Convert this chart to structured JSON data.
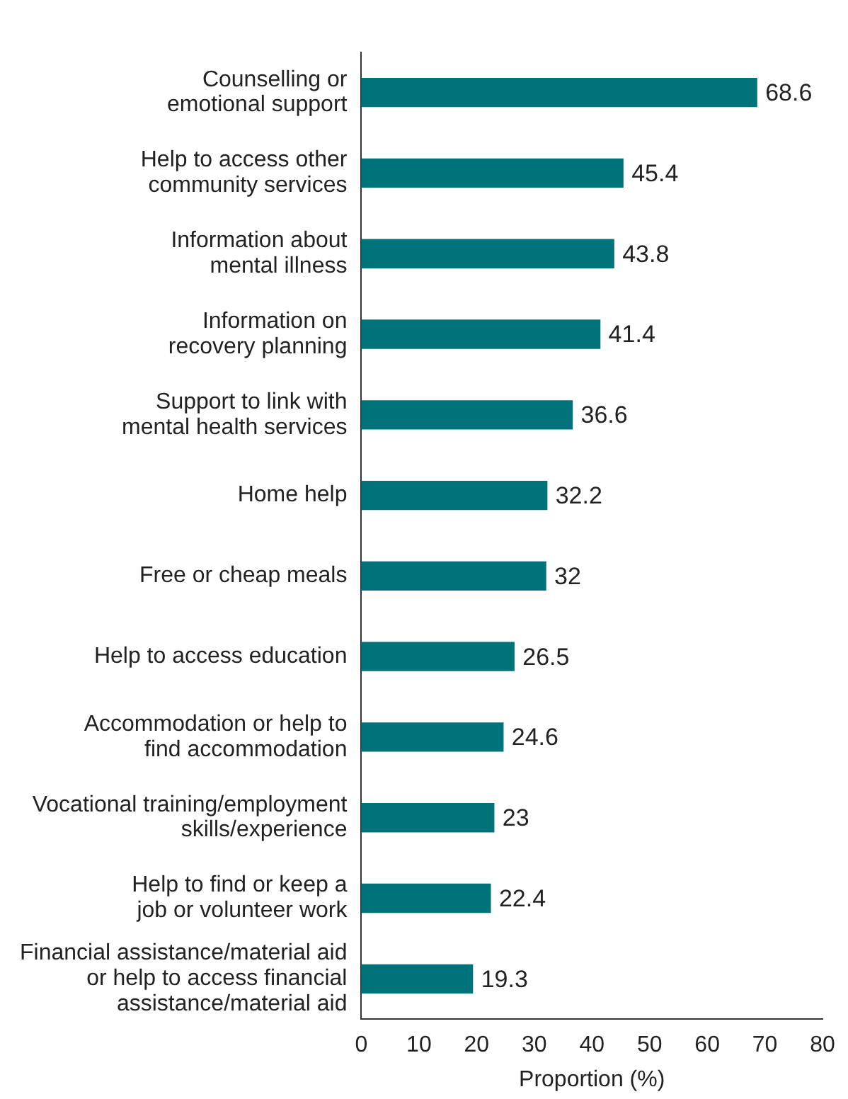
{
  "chart_data": {
    "type": "bar",
    "orientation": "horizontal",
    "categories": [
      "Counselling or\nemotional support",
      "Help to access other\ncommunity services",
      "Information about\nmental illness",
      "Information on\nrecovery planning",
      "Support to link with\nmental health services",
      "Home help",
      "Free or cheap meals",
      "Help to access education",
      "Accommodation or help to\nfind accommodation",
      "Vocational training/employment\nskills/experience",
      "Help to find or keep a\njob or volunteer work",
      "Financial assistance/material aid\nor help to access financial\nassistance/material aid"
    ],
    "values": [
      68.6,
      45.4,
      43.8,
      41.4,
      36.6,
      32.2,
      32,
      26.5,
      24.6,
      23,
      22.4,
      19.3
    ],
    "color": "#00727a",
    "data_labels": true,
    "xlim": [
      0,
      80
    ],
    "xticks": [
      0,
      10,
      20,
      30,
      40,
      50,
      60,
      70,
      80
    ],
    "xlabel": "Proportion (%)",
    "grid": false,
    "legend": false
  }
}
